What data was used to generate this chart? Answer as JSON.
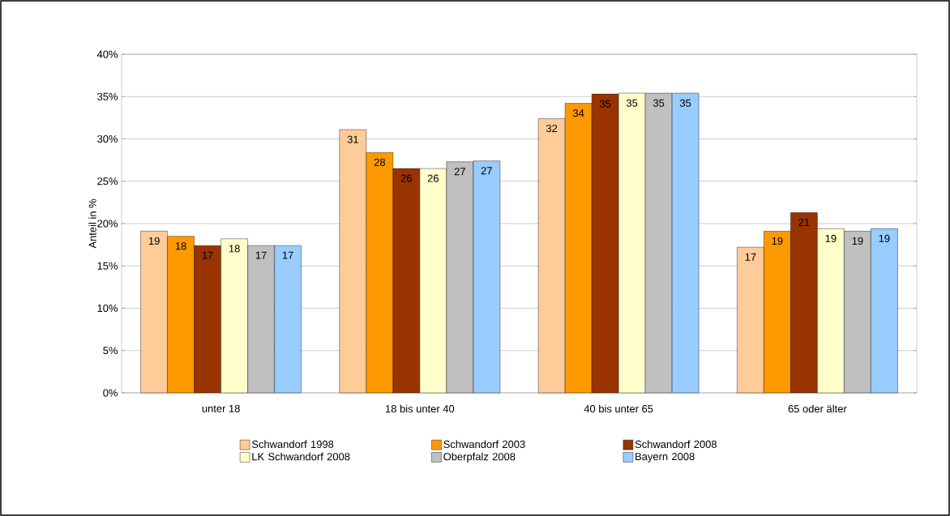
{
  "chart_data": {
    "type": "bar",
    "ylabel": "Anteil in %",
    "categories": [
      "unter 18",
      "18 bis unter 40",
      "40 bis unter 65",
      "65 oder älter"
    ],
    "series": [
      {
        "name": "Schwandorf 1998",
        "color": "#ffcc99",
        "values": [
          19.1,
          31.1,
          32.4,
          17.2
        ],
        "value_labels": [
          "19",
          "31",
          "32",
          "17"
        ]
      },
      {
        "name": "Schwandorf 2003",
        "color": "#ff9900",
        "values": [
          18.5,
          28.4,
          34.2,
          19.1
        ],
        "value_labels": [
          "18",
          "28",
          "34",
          "19"
        ]
      },
      {
        "name": "Schwandorf 2008",
        "color": "#993300",
        "values": [
          17.4,
          26.5,
          35.3,
          21.3
        ],
        "value_labels": [
          "17",
          "26",
          "35",
          "21"
        ]
      },
      {
        "name": "LK Schwandorf 2008",
        "color": "#ffffcc",
        "values": [
          18.2,
          26.5,
          35.4,
          19.4
        ],
        "value_labels": [
          "18",
          "26",
          "35",
          "19"
        ]
      },
      {
        "name": "Oberpfalz 2008",
        "color": "#c0c0c0",
        "values": [
          17.4,
          27.3,
          35.4,
          19.1
        ],
        "value_labels": [
          "17",
          "27",
          "35",
          "19"
        ]
      },
      {
        "name": "Bayern 2008",
        "color": "#99ccff",
        "values": [
          17.4,
          27.4,
          35.4,
          19.4
        ],
        "value_labels": [
          "17",
          "27",
          "35",
          "19"
        ]
      }
    ],
    "ylim": [
      0,
      40
    ],
    "yticks": [
      {
        "value": 0,
        "label": "0%"
      },
      {
        "value": 5,
        "label": "5%"
      },
      {
        "value": 10,
        "label": "10%"
      },
      {
        "value": 15,
        "label": "15%"
      },
      {
        "value": 20,
        "label": "20%"
      },
      {
        "value": 25,
        "label": "25%"
      },
      {
        "value": 30,
        "label": "30%"
      },
      {
        "value": 35,
        "label": "35%"
      },
      {
        "value": 40,
        "label": "40%"
      }
    ],
    "grid": "y",
    "legend": "bottom"
  }
}
